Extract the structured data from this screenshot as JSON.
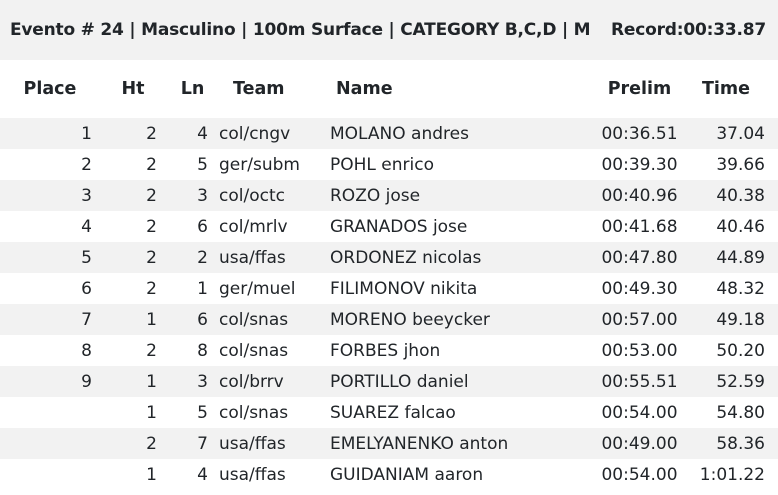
{
  "event": {
    "title": "Evento # 24 | Masculino | 100m Surface | CATEGORY B,C,D | M",
    "record": "Record:00:33.87"
  },
  "table": {
    "headers": {
      "place": "Place",
      "ht": "Ht",
      "ln": "Ln",
      "team": "Team",
      "name": "Name",
      "prelim": "Prelim",
      "time": "Time"
    },
    "rows": [
      {
        "place": "1",
        "ht": "2",
        "ln": "4",
        "team": "col/cngv",
        "name": "MOLANO andres",
        "prelim": "00:36.51",
        "time": "37.04"
      },
      {
        "place": "2",
        "ht": "2",
        "ln": "5",
        "team": "ger/subm",
        "name": "POHL enrico",
        "prelim": "00:39.30",
        "time": "39.66"
      },
      {
        "place": "3",
        "ht": "2",
        "ln": "3",
        "team": "col/octc",
        "name": "ROZO jose",
        "prelim": "00:40.96",
        "time": "40.38"
      },
      {
        "place": "4",
        "ht": "2",
        "ln": "6",
        "team": "col/mrlv",
        "name": "GRANADOS jose",
        "prelim": "00:41.68",
        "time": "40.46"
      },
      {
        "place": "5",
        "ht": "2",
        "ln": "2",
        "team": "usa/ffas",
        "name": "ORDONEZ nicolas",
        "prelim": "00:47.80",
        "time": "44.89"
      },
      {
        "place": "6",
        "ht": "2",
        "ln": "1",
        "team": "ger/muel",
        "name": "FILIMONOV nikita",
        "prelim": "00:49.30",
        "time": "48.32"
      },
      {
        "place": "7",
        "ht": "1",
        "ln": "6",
        "team": "col/snas",
        "name": "MORENO beeycker",
        "prelim": "00:57.00",
        "time": "49.18"
      },
      {
        "place": "8",
        "ht": "2",
        "ln": "8",
        "team": "col/snas",
        "name": "FORBES jhon",
        "prelim": "00:53.00",
        "time": "50.20"
      },
      {
        "place": "9",
        "ht": "1",
        "ln": "3",
        "team": "col/brrv",
        "name": "PORTILLO daniel",
        "prelim": "00:55.51",
        "time": "52.59"
      },
      {
        "place": "",
        "ht": "1",
        "ln": "5",
        "team": "col/snas",
        "name": "SUAREZ falcao",
        "prelim": "00:54.00",
        "time": "54.80"
      },
      {
        "place": "",
        "ht": "2",
        "ln": "7",
        "team": "usa/ffas",
        "name": "EMELYANENKO anton",
        "prelim": "00:49.00",
        "time": "58.36"
      },
      {
        "place": "",
        "ht": "1",
        "ln": "4",
        "team": "usa/ffas",
        "name": "GUIDANIAM aaron",
        "prelim": "00:54.00",
        "time": "1:01.22"
      }
    ]
  }
}
